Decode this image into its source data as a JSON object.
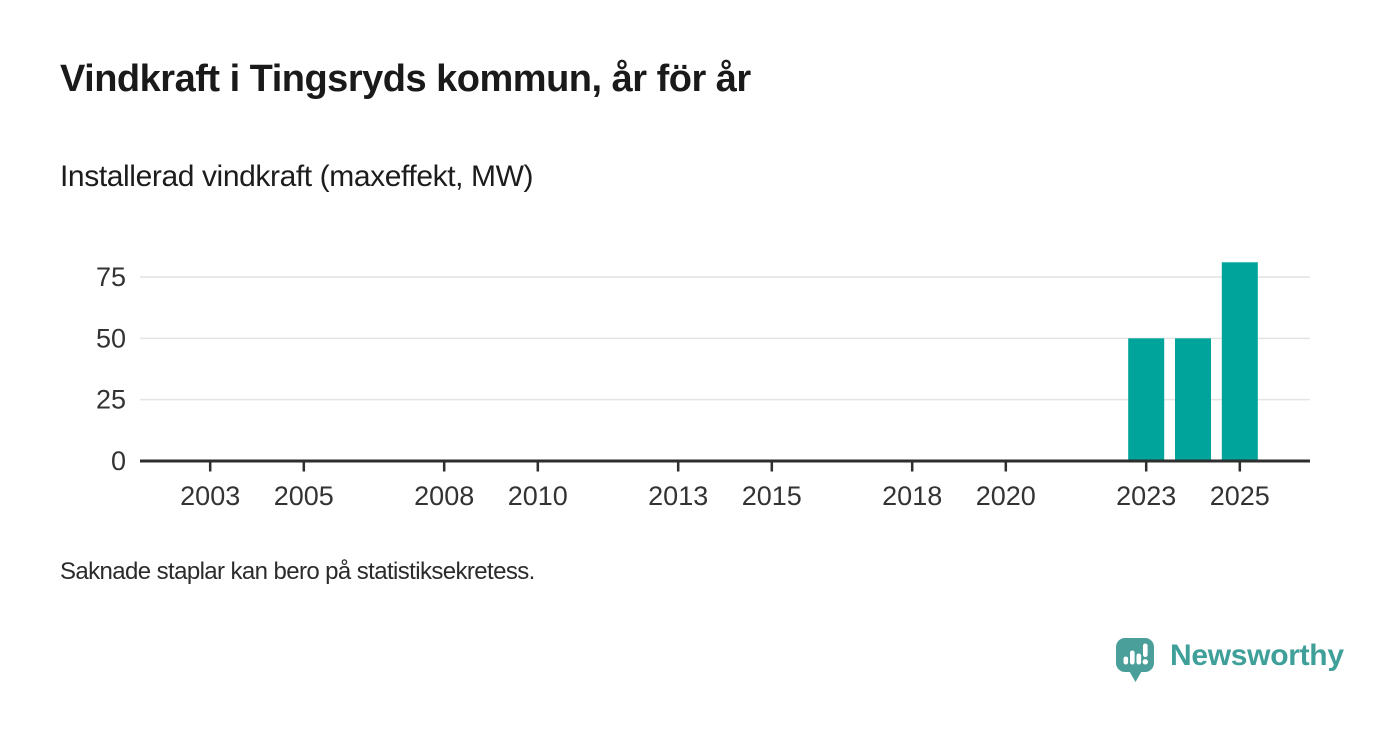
{
  "header": {
    "title": "Vindkraft i Tingsryds kommun, år för år",
    "subtitle": "Installerad vindkraft (maxeffekt, MW)"
  },
  "footer": {
    "note": "Saknade staplar kan bero på statistiksekretess."
  },
  "branding": {
    "name": "Newsworthy",
    "icon": "newsworthy-speech-bubble-bar-chart-icon",
    "icon_color": "#4a9f9b",
    "text_color": "#3f9f99"
  },
  "colors": {
    "bar": "#00a49b",
    "axis": "#2e2e2e",
    "grid": "#e4e4e4",
    "tick_text": "#333333"
  },
  "chart_data": {
    "type": "bar",
    "title": "Vindkraft i Tingsryds kommun, år för år",
    "subtitle": "Installerad vindkraft (maxeffekt, MW)",
    "xlabel": "",
    "ylabel": "Installerad vindkraft (maxeffekt, MW)",
    "x": [
      2023,
      2024,
      2025
    ],
    "values": [
      50,
      50,
      81
    ],
    "x_domain": [
      2001.5,
      2026.5
    ],
    "x_ticks": [
      2003,
      2005,
      2008,
      2010,
      2013,
      2015,
      2018,
      2020,
      2023,
      2025
    ],
    "ylim": [
      0,
      87.5
    ],
    "y_ticks": [
      0,
      25,
      50,
      75
    ],
    "grid": true,
    "legend": false,
    "note": "Saknade staplar kan bero på statistiksekretess."
  }
}
